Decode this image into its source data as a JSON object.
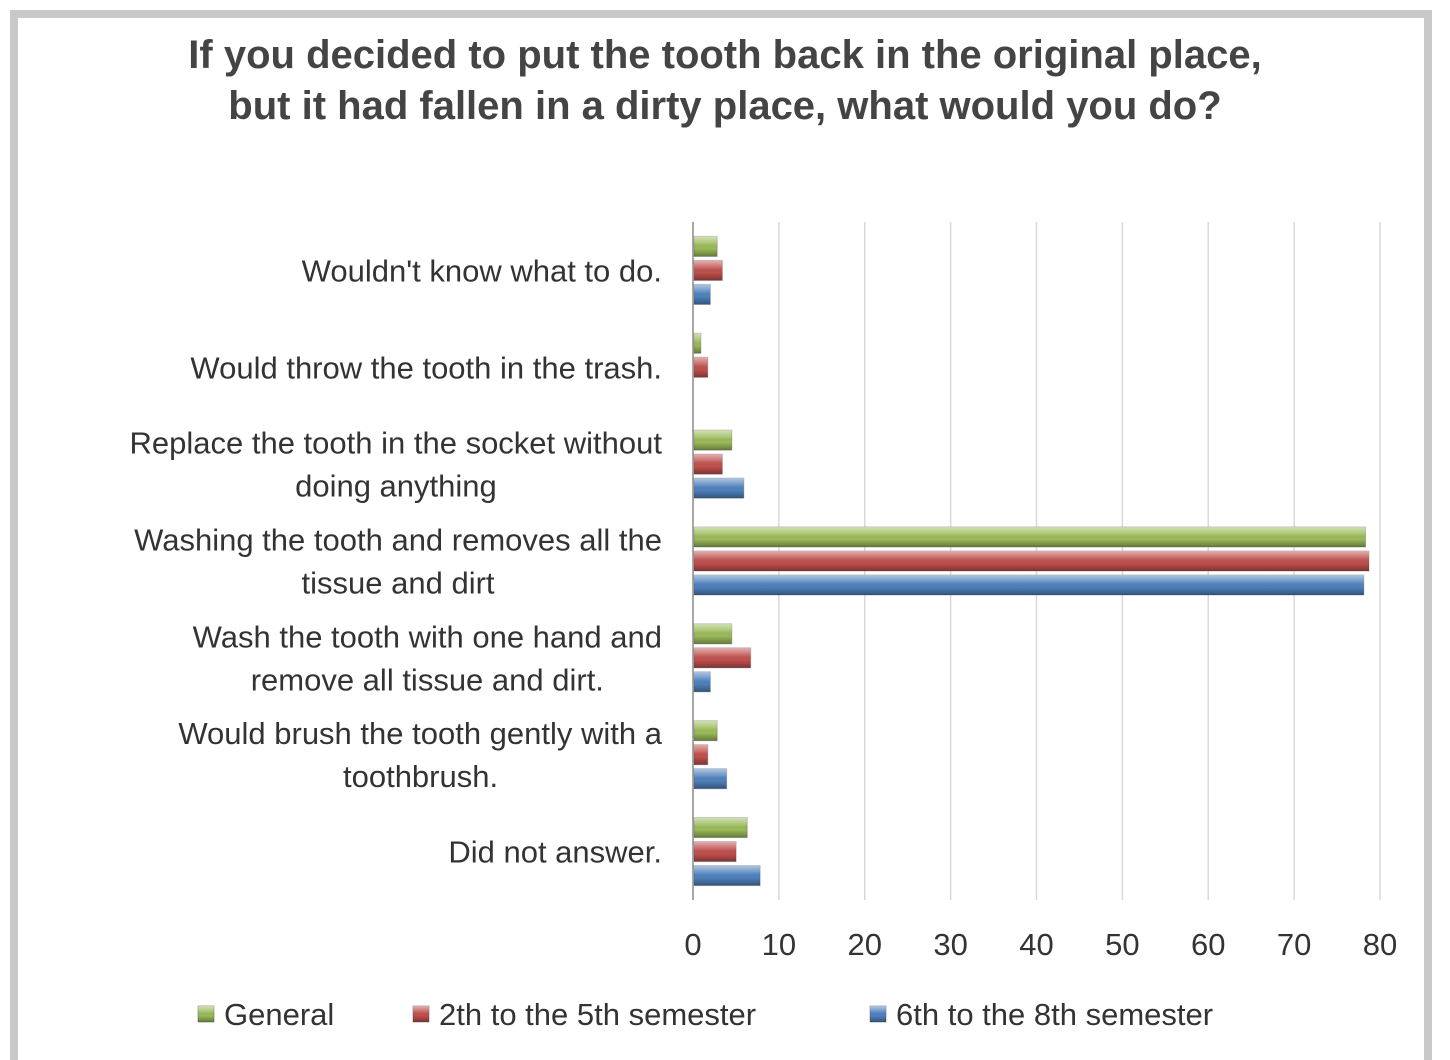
{
  "chart_data": {
    "type": "bar",
    "orientation": "horizontal",
    "title": "If you decided to put the tooth back in the original place, but it had fallen in a dirty place, what would you do?",
    "categories": [
      "Wouldn't know what to do.",
      "Would throw the tooth in the trash.",
      "Replace the tooth in the socket without doing anything",
      "Washing the tooth and removes all the tissue and dirt",
      "Wash the tooth with one hand and remove all tissue and dirt.",
      "Would brush the tooth gently with a toothbrush.",
      "Did not answer."
    ],
    "category_lines": [
      [
        "Wouldn't know what to do."
      ],
      [
        "Would throw the tooth in the trash."
      ],
      [
        "Replace the tooth in the socket without",
        "doing anything"
      ],
      [
        "Washing the tooth and removes all the",
        "tissue and dirt"
      ],
      [
        "Wash the tooth with one hand and",
        "remove all tissue and dirt."
      ],
      [
        "Would brush the tooth gently with a",
        "toothbrush."
      ],
      [
        "Did not answer."
      ]
    ],
    "series": [
      {
        "name": "General",
        "color": "#9bbb59",
        "values": [
          2.7,
          0.8,
          4.4,
          78.2,
          4.4,
          2.7,
          6.2
        ]
      },
      {
        "name": "2th to the 5th semester",
        "color": "#c0504d",
        "values": [
          3.3,
          1.6,
          3.3,
          78.6,
          6.6,
          1.6,
          4.9
        ]
      },
      {
        "name": "6th to the 8th semester",
        "color": "#4f81bd",
        "values": [
          1.9,
          0,
          5.8,
          78.0,
          1.9,
          3.8,
          7.7
        ]
      }
    ],
    "xlim": [
      0,
      80
    ],
    "xticks": [
      "0",
      "10",
      "20",
      "30",
      "40",
      "50",
      "60",
      "70",
      "80"
    ],
    "grid": true,
    "legend": "bottom",
    "xlabel": "",
    "ylabel": ""
  }
}
